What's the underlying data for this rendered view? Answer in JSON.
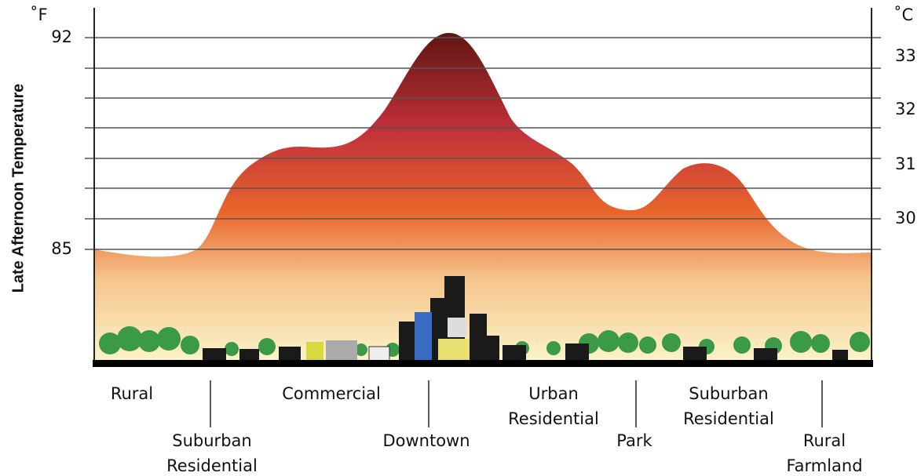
{
  "axis_title": "Late Afternoon Temperature",
  "left_axis": {
    "unit": "˚F",
    "labels": [
      "92",
      "85"
    ]
  },
  "right_axis": {
    "unit": "˚C",
    "labels": [
      "33",
      "32",
      "31",
      "30"
    ]
  },
  "zones": [
    {
      "lines": [
        "Rural"
      ]
    },
    {
      "lines": [
        "Suburban",
        "Residential"
      ]
    },
    {
      "lines": [
        "Commercial"
      ]
    },
    {
      "lines": [
        "Downtown"
      ]
    },
    {
      "lines": [
        "Urban",
        "Residential"
      ]
    },
    {
      "lines": [
        "Park"
      ]
    },
    {
      "lines": [
        "Suburban",
        "Residential"
      ]
    },
    {
      "lines": [
        "Rural",
        "Farmland"
      ]
    }
  ]
}
